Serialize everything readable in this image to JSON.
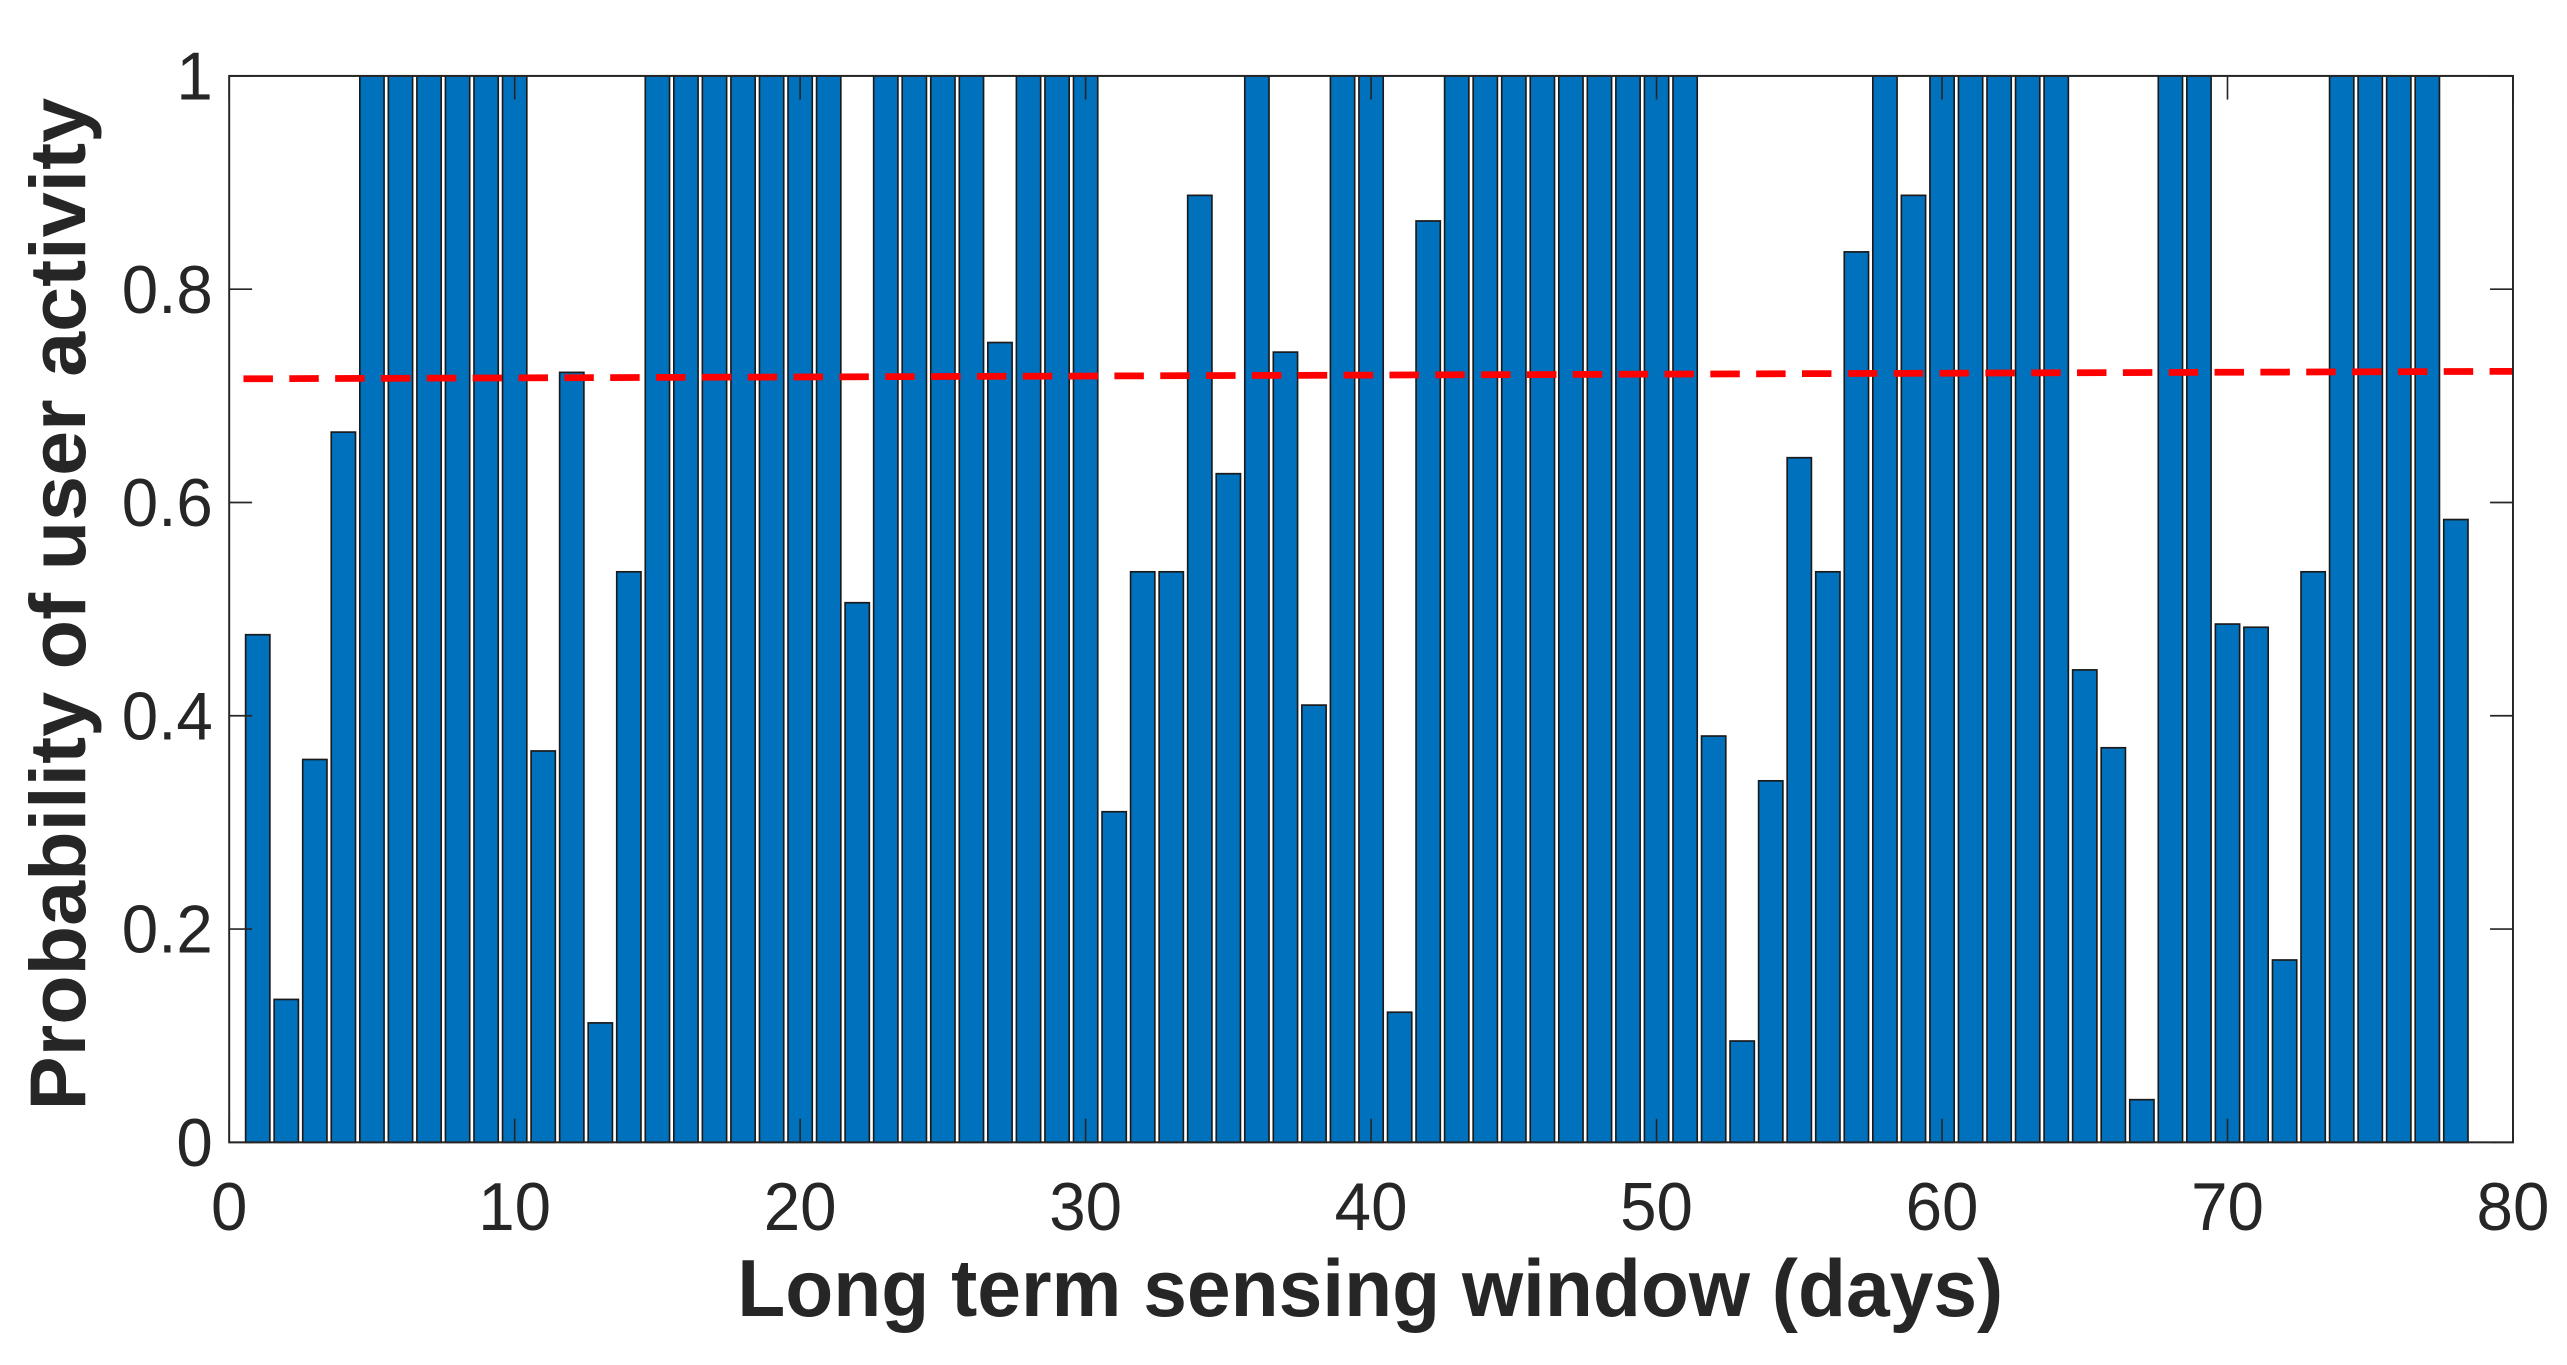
{
  "chart_data": {
    "type": "bar",
    "xlabel": "Long term sensing window (days)",
    "ylabel": "Probability of user activity",
    "x": [
      1,
      2,
      3,
      4,
      5,
      6,
      7,
      8,
      9,
      10,
      11,
      12,
      13,
      14,
      15,
      16,
      17,
      18,
      19,
      20,
      21,
      22,
      23,
      24,
      25,
      26,
      27,
      28,
      29,
      30,
      31,
      32,
      33,
      34,
      35,
      36,
      37,
      38,
      39,
      40,
      41,
      42,
      43,
      44,
      45,
      46,
      47,
      48,
      49,
      50,
      51,
      52,
      53,
      54,
      55,
      56,
      57,
      58,
      59,
      60,
      61,
      62,
      63,
      64,
      65,
      66,
      67,
      68,
      69,
      70,
      71,
      72,
      73,
      74,
      75,
      76,
      77,
      78
    ],
    "values": [
      0.476,
      0.134,
      0.359,
      0.666,
      1,
      1,
      1,
      1,
      1,
      1,
      0.367,
      0.722,
      0.112,
      0.535,
      1,
      1,
      1,
      1,
      1,
      1,
      1,
      0.506,
      1,
      1,
      1,
      1,
      0.75,
      1,
      1,
      1,
      0.31,
      0.535,
      0.535,
      0.888,
      0.627,
      1,
      0.741,
      0.41,
      1,
      1,
      0.122,
      0.864,
      1,
      1,
      1,
      1,
      1,
      1,
      1,
      1,
      1,
      0.381,
      0.095,
      0.339,
      0.642,
      0.535,
      0.835,
      1,
      0.888,
      1,
      1,
      1,
      1,
      1,
      0.443,
      0.37,
      0.04,
      1,
      1,
      0.486,
      0.483,
      0.171,
      0.535,
      1,
      1,
      1,
      1,
      0.584
    ],
    "color": "#0072bd",
    "reference_line": {
      "x": [
        0.5,
        80
      ],
      "values": [
        0.716,
        0.723
      ],
      "color": "#ff0000",
      "style": "dashed"
    },
    "xlim": [
      0,
      80
    ],
    "xticks": [
      0,
      10,
      20,
      30,
      40,
      50,
      60,
      70,
      80
    ],
    "ylim": [
      0,
      1
    ],
    "yticks": [
      0,
      0.2,
      0.4,
      0.6,
      0.8,
      1
    ],
    "grid": false
  }
}
